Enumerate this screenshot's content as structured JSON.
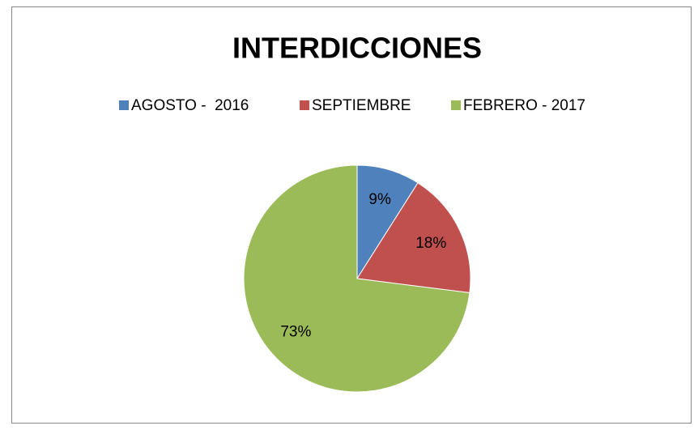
{
  "chart_data": {
    "type": "pie",
    "title": "INTERDICCIONES",
    "categories": [
      "AGOSTO -  2016",
      "SEPTIEMBRE",
      "FEBRERO - 2017"
    ],
    "values": [
      9,
      18,
      73
    ],
    "value_labels": [
      "9%",
      "18%",
      "73%"
    ],
    "colors": [
      "#4f81bd",
      "#c0504d",
      "#9bbb59"
    ],
    "legend": "top"
  }
}
